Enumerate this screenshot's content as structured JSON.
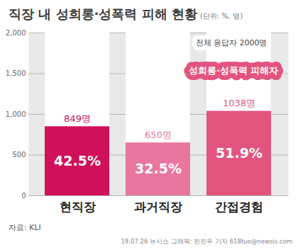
{
  "chart_data": {
    "type": "bar",
    "title": "직장 내 성희롱·성폭력 피해 현황",
    "subtitle": "(단위: %, 명)",
    "categories": [
      "현직장",
      "과거직장",
      "간접경험"
    ],
    "values": [
      849,
      650,
      1038
    ],
    "value_labels": [
      "849명",
      "650명",
      "1038명"
    ],
    "colors": [
      "#d1105a",
      "#e9769f",
      "#e2547e"
    ],
    "shares": [
      42.5,
      32.5,
      51.9
    ],
    "share_labels": [
      "42.5%",
      "32.5%",
      "51.9%"
    ],
    "total": 2000,
    "total_label": "전체 응답자 2000명",
    "series_label": "성희롱·성폭력 피해자",
    "ylim": [
      0,
      2000
    ],
    "yticks": [
      0,
      500,
      1000,
      1500,
      2000
    ],
    "grid": true,
    "data_labels": true,
    "source": "자료: KLI",
    "credit": "19.07.26 뉴시스 그래픽: 전진우 기자 618tue@newsis.com"
  }
}
